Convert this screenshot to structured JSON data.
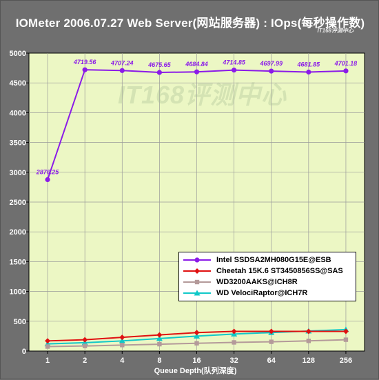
{
  "chart_title": "IOMeter 2006.07.27 Web Server(网站服务器) : IOps(每秒操作数)",
  "brand_tag": "IT168评测中心",
  "watermark": "IT168评测中心",
  "chart_data": {
    "type": "line",
    "title": "IOMeter 2006.07.27 Web Server(网站服务器) : IOps(每秒操作数)",
    "xlabel": "Queue Depth(队列深度)",
    "ylabel": "",
    "categories": [
      "1",
      "2",
      "4",
      "8",
      "16",
      "32",
      "64",
      "128",
      "256"
    ],
    "ylim": [
      0,
      5000
    ],
    "yticks": [
      "0",
      "500",
      "1000",
      "1500",
      "2000",
      "2500",
      "3000",
      "3500",
      "4000",
      "4500",
      "5000"
    ],
    "grid": true,
    "legend_position": "lower-right",
    "series": [
      {
        "name": "Intel SSDSA2MH080G15E@ESB",
        "color": "#8b1be8",
        "marker": "circle",
        "values": [
          2876.25,
          4719.56,
          4707.24,
          4675.65,
          4684.84,
          4714.85,
          4697.99,
          4681.85,
          4701.18
        ],
        "labels": [
          "2876.25",
          "4719.56",
          "4707.24",
          "4675.65",
          "4684.84",
          "4714.85",
          "4697.99",
          "4681.85",
          "4701.18"
        ]
      },
      {
        "name": "Cheetah 15K.6 ST3450856SS@SAS",
        "color": "#e01010",
        "marker": "diamond",
        "values": [
          170,
          190,
          230,
          270,
          310,
          330,
          330,
          330,
          330
        ]
      },
      {
        "name": "WD3200AAKS@ICH8R",
        "color": "#b49a9a",
        "marker": "square",
        "values": [
          75,
          85,
          100,
          115,
          130,
          145,
          155,
          170,
          190
        ]
      },
      {
        "name": "WD VelociRaptor@ICH7R",
        "color": "#10c8c8",
        "marker": "triangle",
        "values": [
          120,
          140,
          170,
          210,
          250,
          285,
          310,
          335,
          360
        ]
      }
    ],
    "plot_background": "#ecf7c4",
    "grid_color": "#9a9a9a"
  }
}
